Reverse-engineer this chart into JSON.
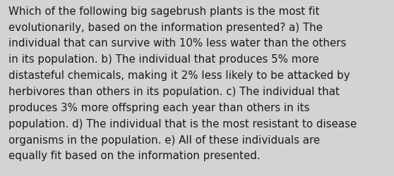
{
  "lines": [
    "Which of the following big sagebrush plants is the most fit",
    "evolutionarily, based on the information presented? a) The",
    "individual that can survive with 10% less water than the others",
    "in its population. b) The individual that produces 5% more",
    "distasteful chemicals, making it 2% less likely to be attacked by",
    "herbivores than others in its population. c) The individual that",
    "produces 3% more offspring each year than others in its",
    "population. d) The individual that is the most resistant to disease",
    "organisms in the population. e) All of these individuals are",
    "equally fit based on the information presented."
  ],
  "background_color": "#d3d3d3",
  "text_color": "#1a1a1a",
  "font_size": 10.8,
  "fig_width": 5.58,
  "fig_height": 2.51,
  "dpi": 100
}
